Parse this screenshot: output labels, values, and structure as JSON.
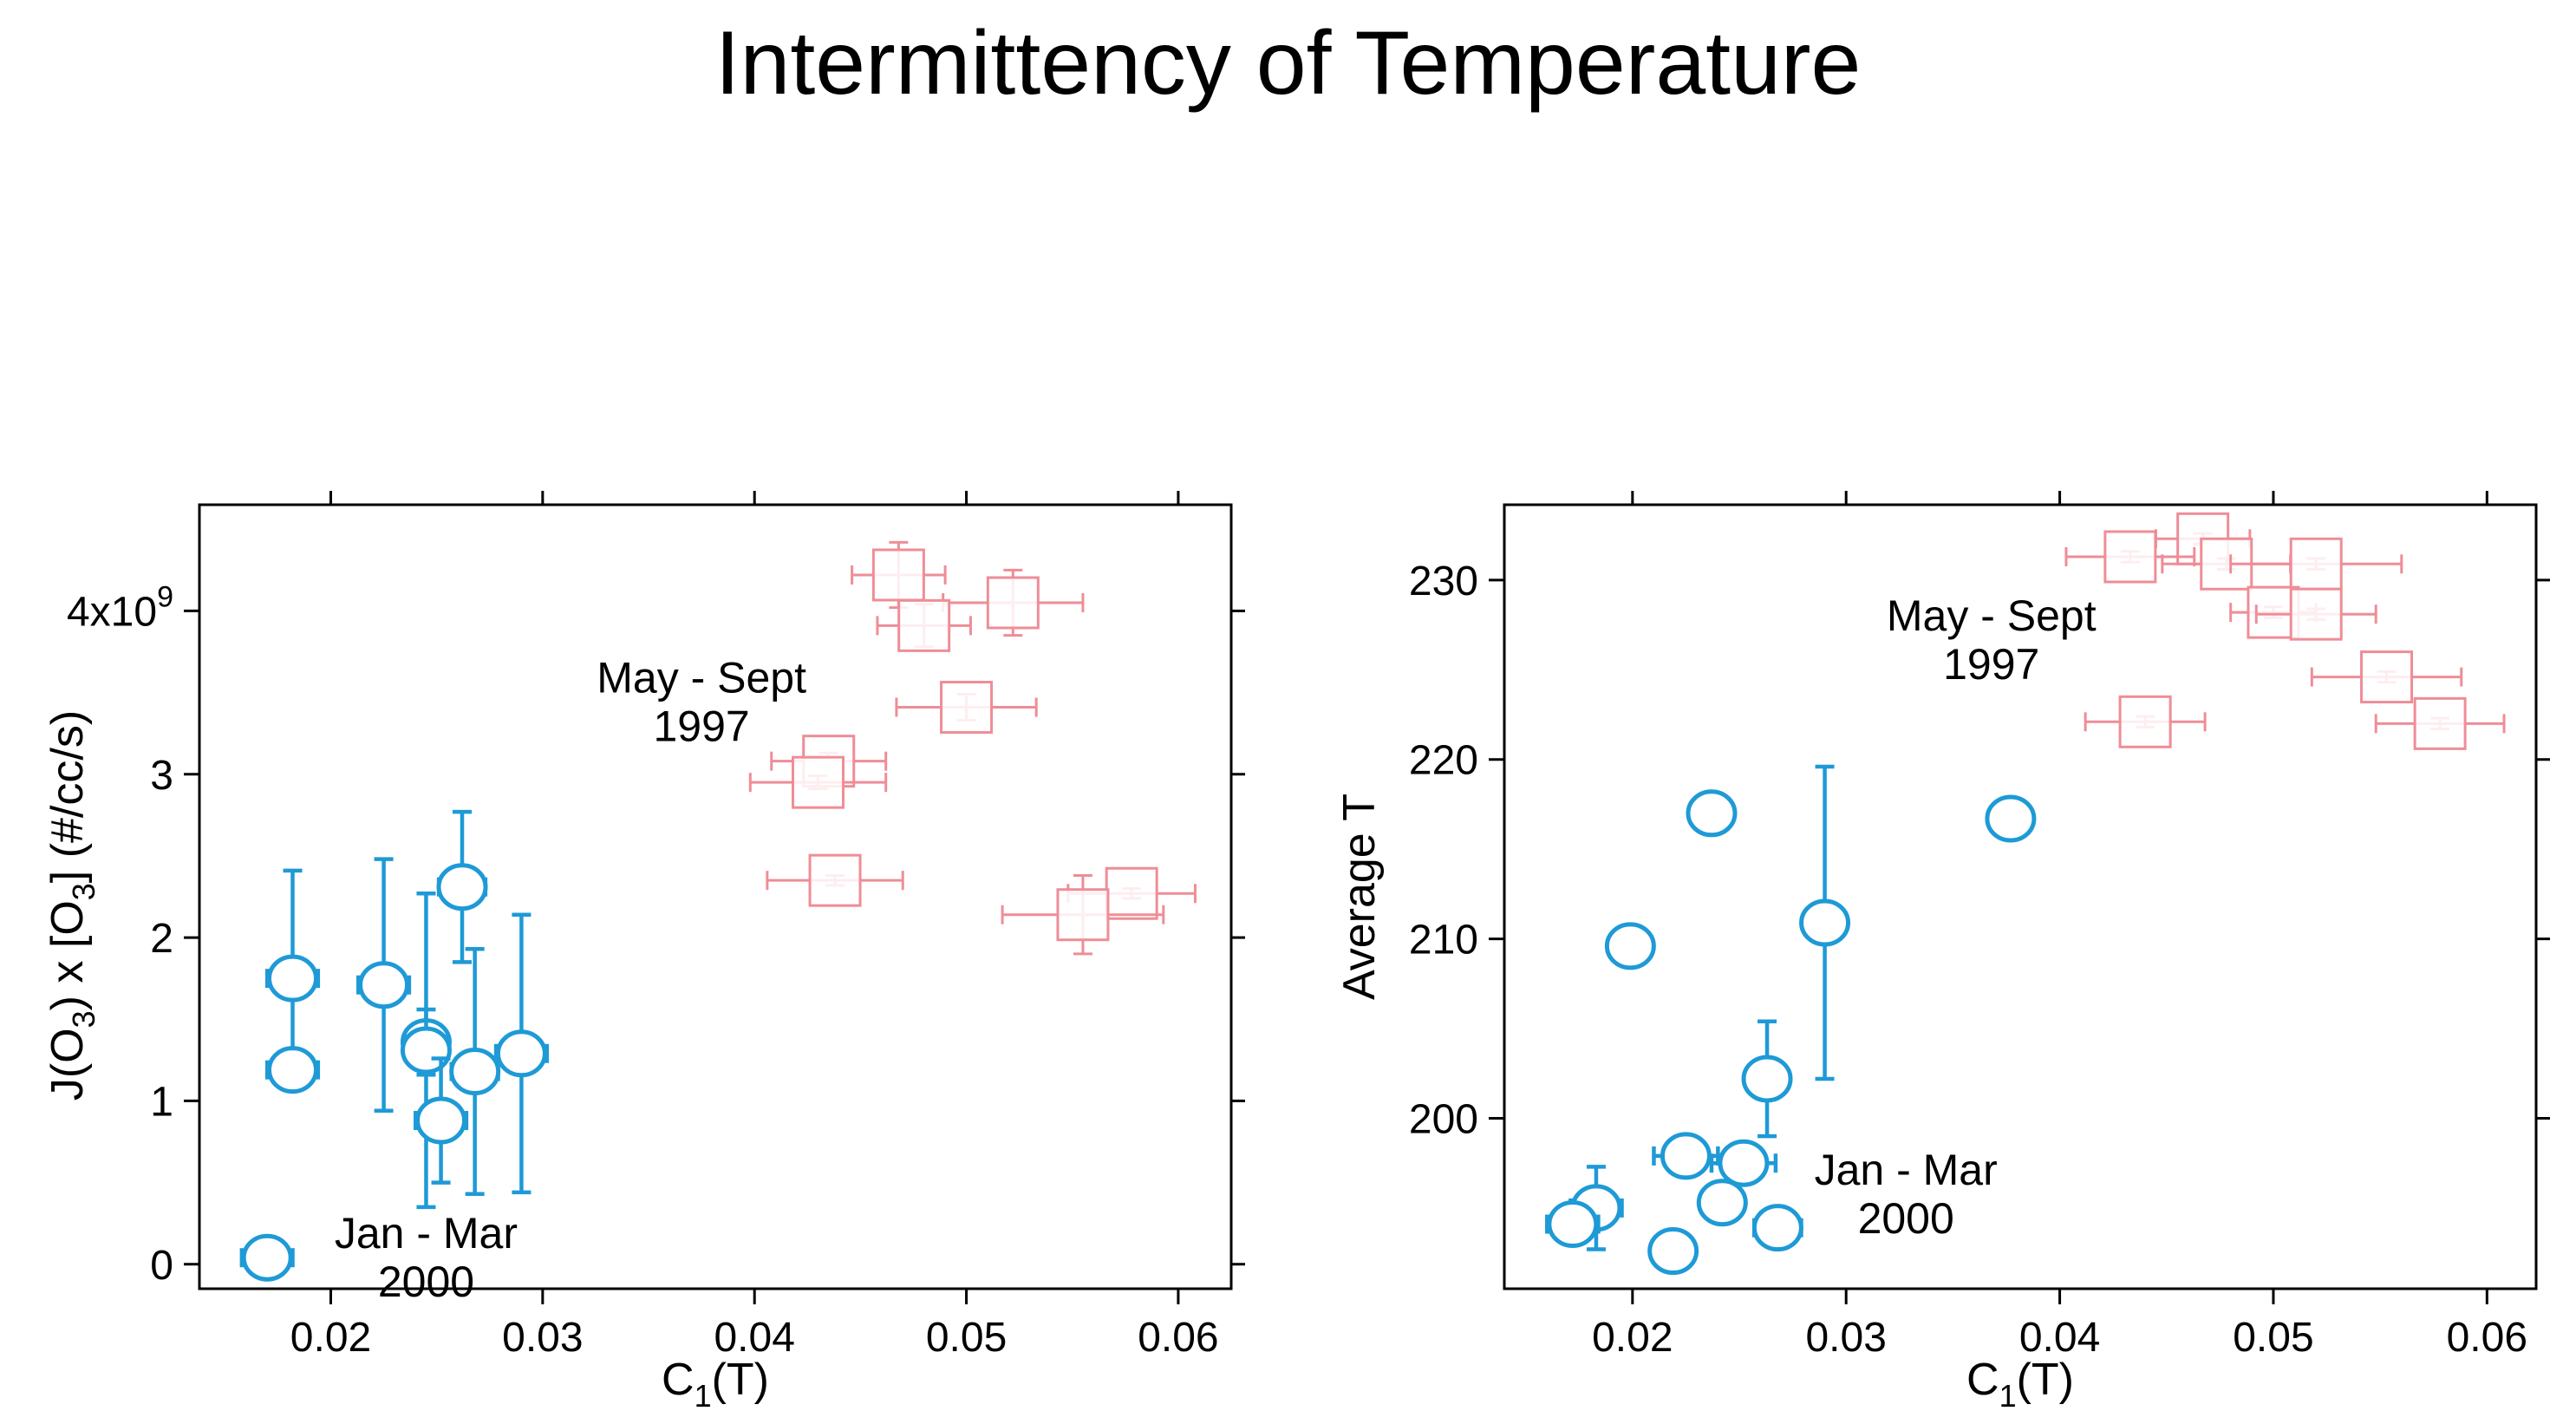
{
  "page": {
    "title": "Intermittency of Temperature"
  },
  "colors": {
    "winter": "#1e9ad6",
    "summer": "#ef8d97",
    "axis": "#000000"
  },
  "chart_data": [
    {
      "type": "scatter",
      "title": "",
      "xlabel": "C1(T)",
      "xlabel_main": "C",
      "xlabel_sub": "1",
      "xlabel_tail": "(T)",
      "ylabel": "J(O3) x [O3]      (#/cc/s)",
      "xlim": [
        0.0138,
        0.0625
      ],
      "ylim": [
        -0.15,
        4.65
      ],
      "grid": false,
      "xticks": [
        {
          "value": 0.02,
          "label": "0.02"
        },
        {
          "value": 0.03,
          "label": "0.03"
        },
        {
          "value": 0.04,
          "label": "0.04"
        },
        {
          "value": 0.05,
          "label": "0.05"
        },
        {
          "value": 0.06,
          "label": "0.06"
        }
      ],
      "yticks": [
        {
          "value": 0,
          "label": "0"
        },
        {
          "value": 1,
          "label": "1"
        },
        {
          "value": 2,
          "label": "2"
        },
        {
          "value": 3,
          "label": "3"
        },
        {
          "value": 4,
          "label": "4x10",
          "sup": "9"
        }
      ],
      "annotations": [
        {
          "lines": [
            "May - Sept",
            "1997"
          ],
          "x": 0.0375,
          "y": 3.5
        },
        {
          "lines": [
            "Jan - Mar",
            "2000"
          ],
          "x": 0.0245,
          "y": 0.1
        }
      ],
      "series": [
        {
          "name": "Jan - Mar 2000",
          "marker": "circle",
          "color_key": "winter",
          "points": [
            {
              "x": 0.0182,
              "y": 1.75,
              "xerr": 0.0012,
              "yerr": 0.66
            },
            {
              "x": 0.0182,
              "y": 1.19,
              "xerr": 0.0012,
              "yerr": 0.05
            },
            {
              "x": 0.017,
              "y": 0.04,
              "xerr": 0.0012,
              "yerr": 0.03
            },
            {
              "x": 0.0225,
              "y": 1.71,
              "xerr": 0.0012,
              "yerr": 0.77
            },
            {
              "x": 0.0245,
              "y": 1.36,
              "xerr": 0.001,
              "yerr": 0.2
            },
            {
              "x": 0.0245,
              "y": 1.31,
              "xerr": 0.001,
              "yerr": 0.96
            },
            {
              "x": 0.0252,
              "y": 0.88,
              "xerr": 0.0012,
              "yerr": 0.38
            },
            {
              "x": 0.0262,
              "y": 2.31,
              "xerr": 0.0011,
              "yerr": 0.46
            },
            {
              "x": 0.0268,
              "y": 1.18,
              "xerr": 0.0011,
              "yerr": 0.75
            },
            {
              "x": 0.029,
              "y": 1.29,
              "xerr": 0.0012,
              "yerr": 0.85
            }
          ]
        },
        {
          "name": "May - Sept 1997",
          "marker": "square",
          "color_key": "summer",
          "points": [
            {
              "x": 0.0468,
              "y": 4.22,
              "xerr": 0.0022,
              "yerr": 0.2
            },
            {
              "x": 0.0522,
              "y": 4.05,
              "xerr": 0.0033,
              "yerr": 0.2
            },
            {
              "x": 0.048,
              "y": 3.91,
              "xerr": 0.0022,
              "yerr": 0.13
            },
            {
              "x": 0.05,
              "y": 3.41,
              "xerr": 0.0033,
              "yerr": 0.08
            },
            {
              "x": 0.0435,
              "y": 3.08,
              "xerr": 0.0027,
              "yerr": 0.05
            },
            {
              "x": 0.043,
              "y": 2.95,
              "xerr": 0.0032,
              "yerr": 0.04
            },
            {
              "x": 0.0438,
              "y": 2.35,
              "xerr": 0.0032,
              "yerr": 0.03
            },
            {
              "x": 0.0578,
              "y": 2.27,
              "xerr": 0.003,
              "yerr": 0.03
            },
            {
              "x": 0.0555,
              "y": 2.14,
              "xerr": 0.0038,
              "yerr": 0.24
            }
          ]
        }
      ]
    },
    {
      "type": "scatter",
      "title": "",
      "xlabel": "C1(T)",
      "xlabel_main": "C",
      "xlabel_sub": "1",
      "xlabel_tail": "(T)",
      "ylabel": "Average T",
      "xlim": [
        0.014,
        0.0623
      ],
      "ylim": [
        190.5,
        234.2
      ],
      "grid": false,
      "xticks": [
        {
          "value": 0.02,
          "label": "0.02"
        },
        {
          "value": 0.03,
          "label": "0.03"
        },
        {
          "value": 0.04,
          "label": "0.04"
        },
        {
          "value": 0.05,
          "label": "0.05"
        },
        {
          "value": 0.06,
          "label": "0.06"
        }
      ],
      "yticks": [
        {
          "value": 200,
          "label": "200"
        },
        {
          "value": 210,
          "label": "210"
        },
        {
          "value": 220,
          "label": "220"
        },
        {
          "value": 230,
          "label": "230"
        }
      ],
      "annotations": [
        {
          "lines": [
            "May - Sept",
            "1997"
          ],
          "x": 0.0368,
          "y": 227.2
        },
        {
          "lines": [
            "Jan - Mar",
            "2000"
          ],
          "x": 0.0328,
          "y": 196.3
        }
      ],
      "series": [
        {
          "name": "Jan - Mar 2000",
          "marker": "circle",
          "color_key": "winter",
          "points": [
            {
              "x": 0.0237,
              "y": 217.0,
              "xerr": 0.0009,
              "yerr": 0.3
            },
            {
              "x": 0.0377,
              "y": 216.7,
              "xerr": 0.0008,
              "yerr": 0.3
            },
            {
              "x": 0.0199,
              "y": 209.6,
              "xerr": 0.0008,
              "yerr": 0.3
            },
            {
              "x": 0.029,
              "y": 210.9,
              "xerr": 0.0005,
              "yerr": 8.7
            },
            {
              "x": 0.0263,
              "y": 202.2,
              "xerr": 0.0009,
              "yerr": 3.2
            },
            {
              "x": 0.0225,
              "y": 197.9,
              "xerr": 0.0015,
              "yerr": 0.4
            },
            {
              "x": 0.0252,
              "y": 197.5,
              "xerr": 0.0015,
              "yerr": 0.4
            },
            {
              "x": 0.0183,
              "y": 195.0,
              "xerr": 0.0012,
              "yerr": 2.3
            },
            {
              "x": 0.0172,
              "y": 194.1,
              "xerr": 0.0012,
              "yerr": 0.5
            },
            {
              "x": 0.0242,
              "y": 195.3,
              "xerr": 0.001,
              "yerr": 0.6
            },
            {
              "x": 0.0268,
              "y": 193.9,
              "xerr": 0.0011,
              "yerr": 0.4
            },
            {
              "x": 0.0219,
              "y": 192.6,
              "xerr": 0.001,
              "yerr": 0.3
            }
          ]
        },
        {
          "name": "May - Sept 1997",
          "marker": "square",
          "color_key": "summer",
          "points": [
            {
              "x": 0.0467,
              "y": 232.3,
              "xerr": 0.0022,
              "yerr": 0.3
            },
            {
              "x": 0.0433,
              "y": 231.3,
              "xerr": 0.003,
              "yerr": 0.3
            },
            {
              "x": 0.0478,
              "y": 230.9,
              "xerr": 0.003,
              "yerr": 0.3
            },
            {
              "x": 0.052,
              "y": 230.9,
              "xerr": 0.004,
              "yerr": 0.3
            },
            {
              "x": 0.05,
              "y": 228.2,
              "xerr": 0.002,
              "yerr": 0.3
            },
            {
              "x": 0.052,
              "y": 228.1,
              "xerr": 0.0028,
              "yerr": 0.3
            },
            {
              "x": 0.0553,
              "y": 224.6,
              "xerr": 0.0035,
              "yerr": 0.3
            },
            {
              "x": 0.044,
              "y": 222.1,
              "xerr": 0.0028,
              "yerr": 0.3
            },
            {
              "x": 0.0578,
              "y": 222.0,
              "xerr": 0.003,
              "yerr": 0.3
            }
          ]
        }
      ]
    }
  ]
}
